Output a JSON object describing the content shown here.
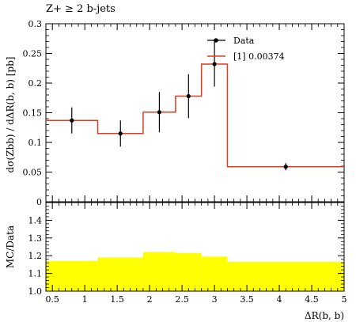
{
  "chart_data": [
    {
      "type": "line",
      "title": "Z+ ≥ 2 b-jets",
      "ylabel": "dσ(Zbb) / dΔR(b, b) [pb]",
      "xlabel": "",
      "xlim": [
        0.4,
        5.0
      ],
      "ylim": [
        0,
        0.3
      ],
      "yticks": [
        0,
        0.05,
        0.1,
        0.15,
        0.2,
        0.25,
        0.3
      ],
      "ytick_labels": [
        "0",
        "0.05",
        "0.1",
        "0.15",
        "0.2",
        "0.25",
        "0.3"
      ],
      "legend_position": "top-right",
      "series": [
        {
          "name": "Data",
          "kind": "points-with-errors",
          "color": "#000000",
          "points": [
            {
              "x": 0.8,
              "y": 0.137,
              "err": 0.022
            },
            {
              "x": 1.55,
              "y": 0.115,
              "err": 0.022
            },
            {
              "x": 2.15,
              "y": 0.151,
              "err": 0.034
            },
            {
              "x": 2.6,
              "y": 0.178,
              "err": 0.037
            },
            {
              "x": 3.0,
              "y": 0.232,
              "err": 0.038
            },
            {
              "x": 4.1,
              "y": 0.059,
              "err": 0.006
            }
          ]
        },
        {
          "name": "[1] 0.00374",
          "kind": "step",
          "color": "#e03c1e",
          "bins": [
            {
              "lo": 0.4,
              "hi": 1.2,
              "y": 0.137
            },
            {
              "lo": 1.2,
              "hi": 1.9,
              "y": 0.115
            },
            {
              "lo": 1.9,
              "hi": 2.4,
              "y": 0.151
            },
            {
              "lo": 2.4,
              "hi": 2.8,
              "y": 0.178
            },
            {
              "lo": 2.8,
              "hi": 3.2,
              "y": 0.232
            },
            {
              "lo": 3.2,
              "hi": 5.0,
              "y": 0.059
            }
          ]
        }
      ]
    },
    {
      "type": "area",
      "ylabel": "MC/Data",
      "xlabel": "ΔR(b, b)",
      "xlim": [
        0.4,
        5.0
      ],
      "ylim": [
        1.0,
        1.5
      ],
      "yticks": [
        1.0,
        1.1,
        1.2,
        1.3,
        1.4
      ],
      "ytick_labels": [
        "1.0",
        "1.1",
        "1.2",
        "1.3",
        "1.4"
      ],
      "xticks": [
        0.5,
        1.0,
        1.5,
        2.0,
        2.5,
        3.0,
        3.5,
        4.0,
        4.5,
        5.0
      ],
      "xtick_labels": [
        "0.5",
        "1",
        "1.5",
        "2",
        "2.5",
        "3",
        "3.5",
        "4",
        "4.5",
        "5"
      ],
      "series": [
        {
          "kind": "band",
          "color": "#ffff00",
          "bins": [
            {
              "lo": 0.4,
              "hi": 1.2,
              "y": 1.17
            },
            {
              "lo": 1.2,
              "hi": 1.9,
              "y": 1.19
            },
            {
              "lo": 1.9,
              "hi": 2.4,
              "y": 1.22
            },
            {
              "lo": 2.4,
              "hi": 2.8,
              "y": 1.215
            },
            {
              "lo": 2.8,
              "hi": 3.2,
              "y": 1.195
            },
            {
              "lo": 3.2,
              "hi": 5.0,
              "y": 1.165
            }
          ]
        }
      ]
    }
  ]
}
